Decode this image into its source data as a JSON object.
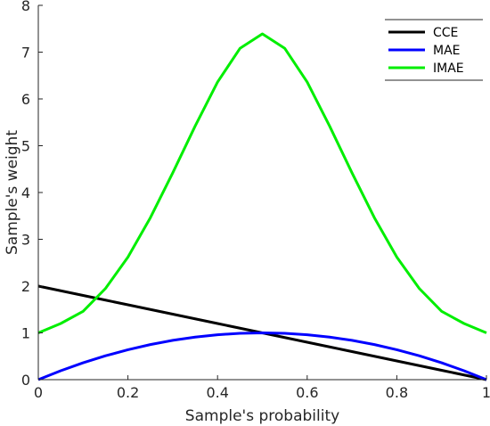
{
  "chart_data": {
    "type": "line",
    "xlabel": "Sample's probability",
    "ylabel": "Sample's weight",
    "xlim": [
      0,
      1
    ],
    "ylim": [
      0,
      8
    ],
    "xticks": [
      0,
      0.2,
      0.4,
      0.6,
      0.8,
      1
    ],
    "xtick_labels": [
      "0",
      "0.2",
      "0.4",
      "0.6",
      "0.8",
      "1"
    ],
    "yticks": [
      0,
      1,
      2,
      3,
      4,
      5,
      6,
      7,
      8
    ],
    "ytick_labels": [
      "0",
      "1",
      "2",
      "3",
      "4",
      "5",
      "6",
      "7",
      "8"
    ],
    "grid": false,
    "legend_position": "top-right",
    "x": [
      0,
      0.05,
      0.1,
      0.15,
      0.2,
      0.25,
      0.3,
      0.35,
      0.4,
      0.45,
      0.5,
      0.55,
      0.6,
      0.65,
      0.7,
      0.75,
      0.8,
      0.85,
      0.9,
      0.95,
      1
    ],
    "series": [
      {
        "name": "CCE",
        "color": "#000000",
        "values": [
          2.0,
          1.9,
          1.8,
          1.7,
          1.6,
          1.5,
          1.4,
          1.3,
          1.2,
          1.1,
          1.0,
          0.9,
          0.8,
          0.7,
          0.6,
          0.5,
          0.4,
          0.3,
          0.2,
          0.1,
          0.0
        ]
      },
      {
        "name": "MAE",
        "color": "#0000ff",
        "values": [
          0.0,
          0.19,
          0.36,
          0.51,
          0.64,
          0.75,
          0.84,
          0.91,
          0.96,
          0.99,
          1.0,
          0.99,
          0.96,
          0.91,
          0.84,
          0.75,
          0.64,
          0.51,
          0.36,
          0.19,
          0.0
        ]
      },
      {
        "name": "IMAE",
        "color": "#00ee00",
        "values": [
          1.0,
          1.2,
          1.46,
          1.95,
          2.62,
          3.46,
          4.42,
          5.42,
          6.36,
          7.08,
          7.39,
          7.08,
          6.36,
          5.42,
          4.42,
          3.46,
          2.62,
          1.95,
          1.46,
          1.2,
          1.0
        ]
      }
    ]
  }
}
